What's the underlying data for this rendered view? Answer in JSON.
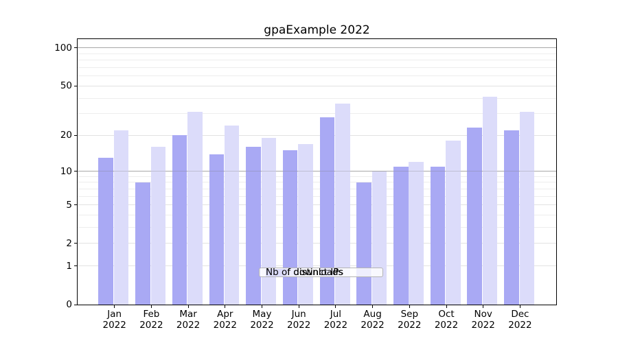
{
  "chart_data": {
    "type": "bar",
    "title": "gpaExample 2022",
    "year": "2022",
    "categories": [
      "Jan",
      "Feb",
      "Mar",
      "Apr",
      "May",
      "Jun",
      "Jul",
      "Aug",
      "Sep",
      "Oct",
      "Nov",
      "Dec"
    ],
    "series": [
      {
        "name": "Nb of distinct IPs",
        "color": "#a9a9f4",
        "values": [
          13,
          8,
          20,
          14,
          16,
          15,
          28,
          8,
          11,
          11,
          23,
          22
        ]
      },
      {
        "name": "Nb of downloads",
        "color": "#dcdcfa",
        "values": [
          22,
          16,
          31,
          24,
          19,
          17,
          36,
          10,
          12,
          18,
          41,
          31
        ]
      }
    ],
    "y_axis": {
      "scale": "log1p",
      "ticks": [
        0,
        1,
        2,
        5,
        10,
        20,
        50,
        100
      ],
      "strong_gridlines": [
        10,
        100
      ],
      "minor_gridlines": [
        3,
        4,
        6,
        7,
        8,
        9,
        30,
        40,
        60,
        70,
        80,
        90
      ],
      "range": [
        0,
        118
      ]
    },
    "legend": {
      "position": "lower-center"
    },
    "grid": true
  }
}
